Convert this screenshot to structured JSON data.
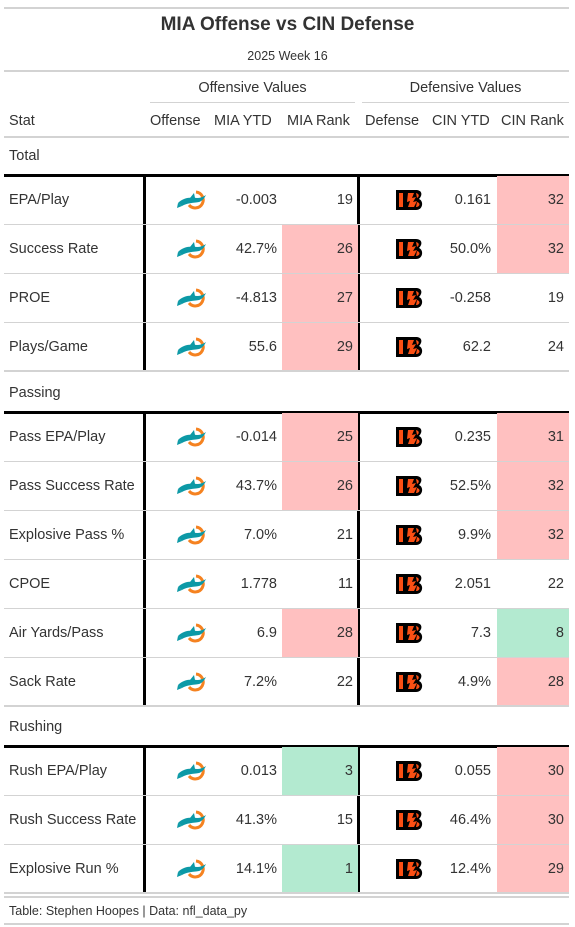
{
  "header": {
    "title": "MIA Offense vs CIN Defense",
    "subtitle": "2025 Week 16"
  },
  "spanners": {
    "offense": "Offensive Values",
    "defense": "Defensive Values"
  },
  "columns": {
    "stat": "Stat",
    "offense": "Offense",
    "off_ytd": "MIA YTD",
    "off_rank": "MIA Rank",
    "defense": "Defense",
    "def_ytd": "CIN YTD",
    "def_rank": "CIN Rank"
  },
  "colors": {
    "bad_rank": "#ffc0c0",
    "good_rank": "#b3ead0",
    "dolphins_teal": "#0c99a6",
    "dolphins_orange": "#f58220",
    "bengals_orange": "#fb4f14",
    "bengals_black": "#000000"
  },
  "icons": {
    "offense_logo": "dolphins-logo-icon",
    "defense_logo": "bengals-logo-icon"
  },
  "groups": [
    {
      "label": "Total",
      "rows": [
        {
          "stat": "EPA/Play",
          "off_ytd": "-0.003",
          "off_rank": "19",
          "off_flag": "none",
          "def_ytd": "0.161",
          "def_rank": "32",
          "def_flag": "bad"
        },
        {
          "stat": "Success Rate",
          "off_ytd": "42.7%",
          "off_rank": "26",
          "off_flag": "bad",
          "def_ytd": "50.0%",
          "def_rank": "32",
          "def_flag": "bad"
        },
        {
          "stat": "PROE",
          "off_ytd": "-4.813",
          "off_rank": "27",
          "off_flag": "bad",
          "def_ytd": "-0.258",
          "def_rank": "19",
          "def_flag": "none"
        },
        {
          "stat": "Plays/Game",
          "off_ytd": "55.6",
          "off_rank": "29",
          "off_flag": "bad",
          "def_ytd": "62.2",
          "def_rank": "24",
          "def_flag": "none"
        }
      ]
    },
    {
      "label": "Passing",
      "rows": [
        {
          "stat": "Pass EPA/Play",
          "off_ytd": "-0.014",
          "off_rank": "25",
          "off_flag": "bad",
          "def_ytd": "0.235",
          "def_rank": "31",
          "def_flag": "bad"
        },
        {
          "stat": "Pass Success Rate",
          "off_ytd": "43.7%",
          "off_rank": "26",
          "off_flag": "bad",
          "def_ytd": "52.5%",
          "def_rank": "32",
          "def_flag": "bad"
        },
        {
          "stat": "Explosive Pass %",
          "off_ytd": "7.0%",
          "off_rank": "21",
          "off_flag": "none",
          "def_ytd": "9.9%",
          "def_rank": "32",
          "def_flag": "bad"
        },
        {
          "stat": "CPOE",
          "off_ytd": "1.778",
          "off_rank": "11",
          "off_flag": "none",
          "def_ytd": "2.051",
          "def_rank": "22",
          "def_flag": "none"
        },
        {
          "stat": "Air Yards/Pass",
          "off_ytd": "6.9",
          "off_rank": "28",
          "off_flag": "bad",
          "def_ytd": "7.3",
          "def_rank": "8",
          "def_flag": "good"
        },
        {
          "stat": "Sack Rate",
          "off_ytd": "7.2%",
          "off_rank": "22",
          "off_flag": "none",
          "def_ytd": "4.9%",
          "def_rank": "28",
          "def_flag": "bad"
        }
      ]
    },
    {
      "label": "Rushing",
      "rows": [
        {
          "stat": "Rush EPA/Play",
          "off_ytd": "0.013",
          "off_rank": "3",
          "off_flag": "good",
          "def_ytd": "0.055",
          "def_rank": "30",
          "def_flag": "bad"
        },
        {
          "stat": "Rush Success Rate",
          "off_ytd": "41.3%",
          "off_rank": "15",
          "off_flag": "none",
          "def_ytd": "46.4%",
          "def_rank": "30",
          "def_flag": "bad"
        },
        {
          "stat": "Explosive Run %",
          "off_ytd": "14.1%",
          "off_rank": "1",
          "off_flag": "good",
          "def_ytd": "12.4%",
          "def_rank": "29",
          "def_flag": "bad"
        }
      ]
    }
  ],
  "footer": "Table: Stephen Hoopes | Data: nfl_data_py"
}
